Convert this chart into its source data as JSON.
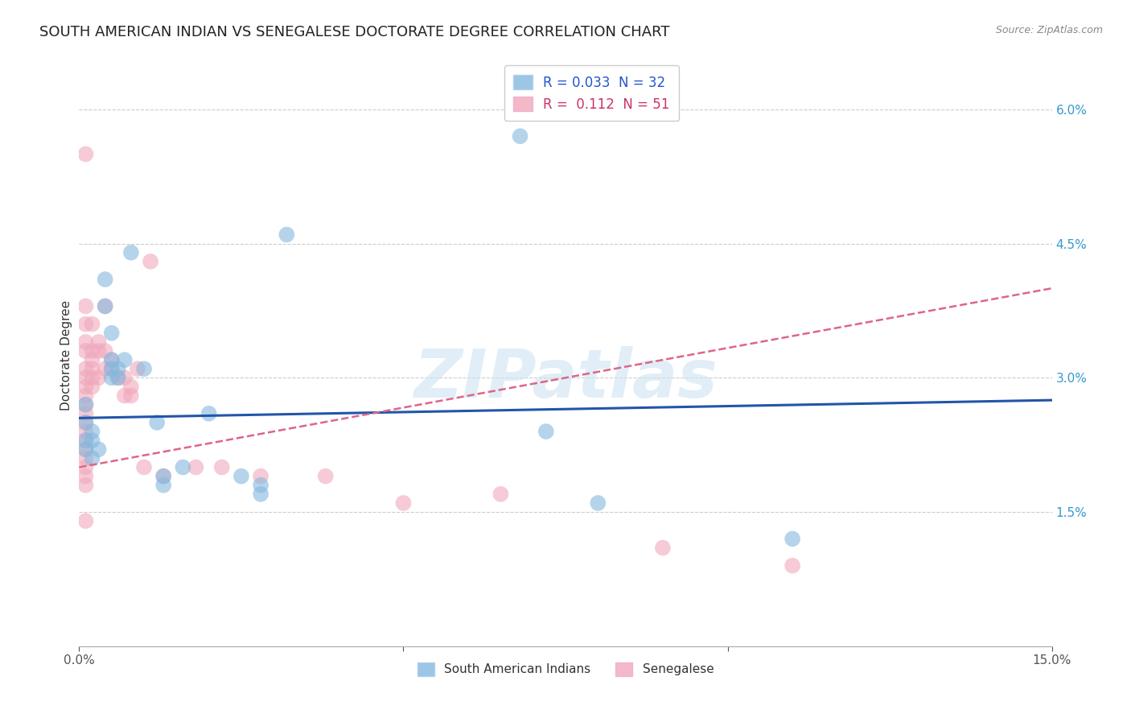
{
  "title": "SOUTH AMERICAN INDIAN VS SENEGALESE DOCTORATE DEGREE CORRELATION CHART",
  "source": "Source: ZipAtlas.com",
  "ylabel": "Doctorate Degree",
  "right_yticks": [
    "6.0%",
    "4.5%",
    "3.0%",
    "1.5%"
  ],
  "right_ytick_vals": [
    0.06,
    0.045,
    0.03,
    0.015
  ],
  "xlim": [
    0.0,
    0.15
  ],
  "ylim": [
    0.0,
    0.065
  ],
  "legend_labels_top": [
    "R = 0.033  N = 32",
    "R =  0.112  N = 51"
  ],
  "legend_labels_bottom": [
    "South American Indians",
    "Senegalese"
  ],
  "blue_scatter": [
    [
      0.001,
      0.027
    ],
    [
      0.001,
      0.025
    ],
    [
      0.001,
      0.023
    ],
    [
      0.001,
      0.022
    ],
    [
      0.002,
      0.024
    ],
    [
      0.002,
      0.023
    ],
    [
      0.002,
      0.021
    ],
    [
      0.003,
      0.022
    ],
    [
      0.004,
      0.041
    ],
    [
      0.004,
      0.038
    ],
    [
      0.005,
      0.035
    ],
    [
      0.005,
      0.032
    ],
    [
      0.005,
      0.031
    ],
    [
      0.005,
      0.03
    ],
    [
      0.006,
      0.031
    ],
    [
      0.006,
      0.03
    ],
    [
      0.007,
      0.032
    ],
    [
      0.008,
      0.044
    ],
    [
      0.01,
      0.031
    ],
    [
      0.012,
      0.025
    ],
    [
      0.013,
      0.019
    ],
    [
      0.013,
      0.018
    ],
    [
      0.016,
      0.02
    ],
    [
      0.02,
      0.026
    ],
    [
      0.025,
      0.019
    ],
    [
      0.028,
      0.018
    ],
    [
      0.028,
      0.017
    ],
    [
      0.032,
      0.046
    ],
    [
      0.068,
      0.057
    ],
    [
      0.072,
      0.024
    ],
    [
      0.08,
      0.016
    ],
    [
      0.11,
      0.012
    ]
  ],
  "pink_scatter": [
    [
      0.001,
      0.055
    ],
    [
      0.001,
      0.038
    ],
    [
      0.001,
      0.036
    ],
    [
      0.001,
      0.034
    ],
    [
      0.001,
      0.033
    ],
    [
      0.001,
      0.031
    ],
    [
      0.001,
      0.03
    ],
    [
      0.001,
      0.029
    ],
    [
      0.001,
      0.028
    ],
    [
      0.001,
      0.027
    ],
    [
      0.001,
      0.026
    ],
    [
      0.001,
      0.025
    ],
    [
      0.001,
      0.024
    ],
    [
      0.001,
      0.023
    ],
    [
      0.001,
      0.022
    ],
    [
      0.001,
      0.021
    ],
    [
      0.001,
      0.02
    ],
    [
      0.001,
      0.019
    ],
    [
      0.001,
      0.018
    ],
    [
      0.001,
      0.014
    ],
    [
      0.002,
      0.036
    ],
    [
      0.002,
      0.033
    ],
    [
      0.002,
      0.032
    ],
    [
      0.002,
      0.031
    ],
    [
      0.002,
      0.03
    ],
    [
      0.002,
      0.029
    ],
    [
      0.003,
      0.034
    ],
    [
      0.003,
      0.033
    ],
    [
      0.003,
      0.03
    ],
    [
      0.004,
      0.038
    ],
    [
      0.004,
      0.033
    ],
    [
      0.004,
      0.031
    ],
    [
      0.005,
      0.032
    ],
    [
      0.005,
      0.031
    ],
    [
      0.006,
      0.03
    ],
    [
      0.007,
      0.03
    ],
    [
      0.007,
      0.028
    ],
    [
      0.008,
      0.029
    ],
    [
      0.008,
      0.028
    ],
    [
      0.009,
      0.031
    ],
    [
      0.01,
      0.02
    ],
    [
      0.011,
      0.043
    ],
    [
      0.013,
      0.019
    ],
    [
      0.018,
      0.02
    ],
    [
      0.022,
      0.02
    ],
    [
      0.028,
      0.019
    ],
    [
      0.038,
      0.019
    ],
    [
      0.05,
      0.016
    ],
    [
      0.065,
      0.017
    ],
    [
      0.09,
      0.011
    ],
    [
      0.11,
      0.009
    ]
  ],
  "blue_line": {
    "x": [
      0.0,
      0.15
    ],
    "y": [
      0.0255,
      0.0275
    ]
  },
  "pink_line": {
    "x": [
      0.0,
      0.15
    ],
    "y": [
      0.02,
      0.04
    ]
  },
  "watermark": "ZIPatlas",
  "background_color": "#ffffff",
  "grid_color": "#cccccc",
  "blue_color": "#85b8de",
  "pink_color": "#f0a8bc",
  "blue_line_color": "#2255aa",
  "pink_line_color": "#dd6688",
  "title_fontsize": 13,
  "axis_label_fontsize": 11,
  "tick_fontsize": 11,
  "legend_text_blue": "#2255cc",
  "legend_text_pink": "#cc3366"
}
